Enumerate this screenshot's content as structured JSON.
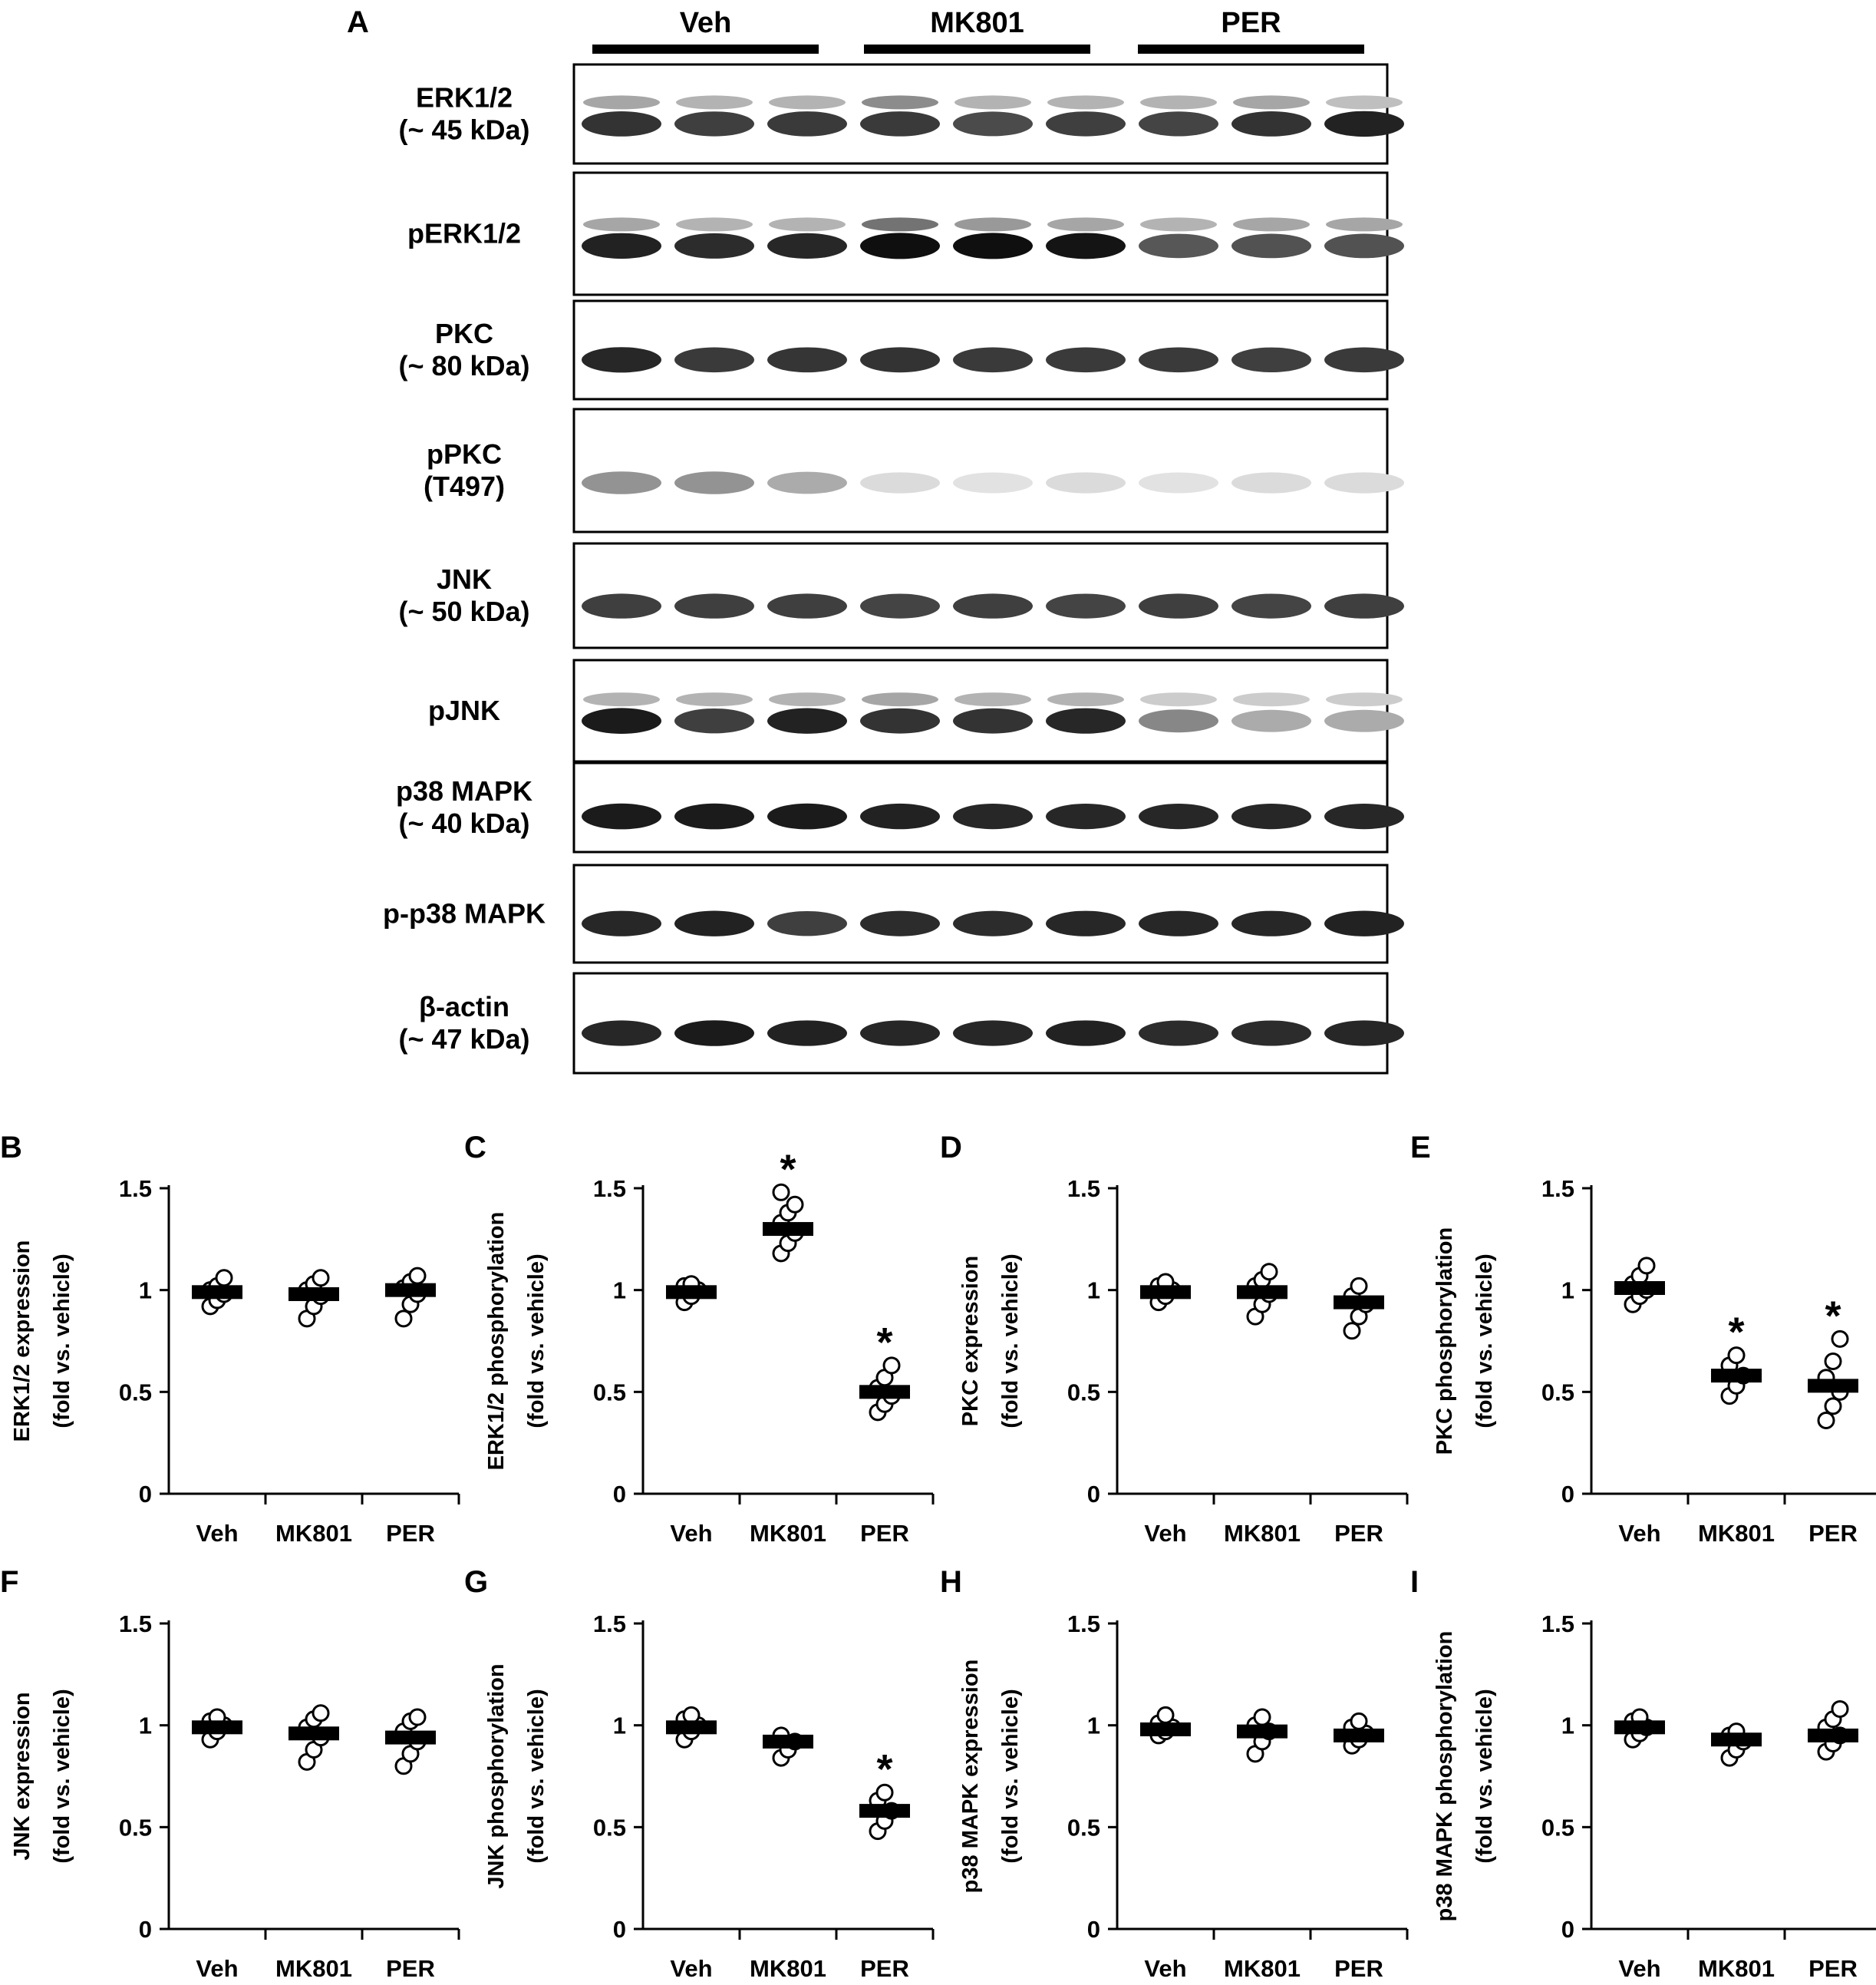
{
  "figure": {
    "panel_a": {
      "letter": "A",
      "groups": [
        "Veh",
        "MK801",
        "PER"
      ],
      "blots": [
        {
          "label_lines": [
            "ERK1/2",
            "(~ 45 kDa)"
          ],
          "bands": [
            0.85,
            0.8,
            0.82,
            0.82,
            0.75,
            0.8,
            0.78,
            0.85,
            0.92
          ],
          "upper_bands": [
            0.35,
            0.3,
            0.3,
            0.45,
            0.3,
            0.3,
            0.3,
            0.35,
            0.25
          ]
        },
        {
          "label_lines": [
            "pERK1/2"
          ],
          "bands": [
            0.92,
            0.88,
            0.9,
            1.0,
            1.0,
            0.98,
            0.7,
            0.72,
            0.72
          ],
          "upper_bands": [
            0.35,
            0.3,
            0.3,
            0.55,
            0.4,
            0.35,
            0.3,
            0.35,
            0.35
          ]
        },
        {
          "label_lines": [
            "PKC",
            "(~ 80 kDa)"
          ],
          "bands": [
            0.9,
            0.82,
            0.84,
            0.85,
            0.82,
            0.82,
            0.82,
            0.8,
            0.82
          ],
          "upper_bands": []
        },
        {
          "label_lines": [
            "pPKC",
            "(T497)"
          ],
          "bands": [
            0.45,
            0.45,
            0.35,
            0.15,
            0.12,
            0.15,
            0.12,
            0.15,
            0.15
          ],
          "upper_bands": []
        },
        {
          "label_lines": [
            "JNK",
            "(~ 50 kDa)"
          ],
          "bands": [
            0.8,
            0.8,
            0.8,
            0.78,
            0.8,
            0.78,
            0.8,
            0.78,
            0.8
          ],
          "upper_bands": []
        },
        {
          "label_lines": [
            "pJNK"
          ],
          "bands": [
            0.95,
            0.8,
            0.92,
            0.85,
            0.85,
            0.9,
            0.5,
            0.35,
            0.35
          ],
          "upper_bands": [
            0.3,
            0.3,
            0.3,
            0.35,
            0.3,
            0.3,
            0.2,
            0.2,
            0.2
          ]
        },
        {
          "label_lines": [
            "p38 MAPK",
            "(~ 40 kDa)"
          ],
          "bands": [
            0.95,
            0.95,
            0.95,
            0.92,
            0.9,
            0.9,
            0.9,
            0.9,
            0.9
          ],
          "upper_bands": []
        },
        {
          "label_lines": [
            "p-p38 MAPK"
          ],
          "bands": [
            0.9,
            0.92,
            0.8,
            0.88,
            0.88,
            0.9,
            0.9,
            0.9,
            0.92
          ],
          "upper_bands": []
        },
        {
          "label_lines": [
            "β-actin",
            "(~ 47 kDa)"
          ],
          "bands": [
            0.9,
            0.95,
            0.92,
            0.9,
            0.9,
            0.92,
            0.88,
            0.88,
            0.9
          ],
          "upper_bands": []
        }
      ]
    }
  },
  "chart_data": [
    {
      "type": "scatter",
      "panel": "B",
      "ylabel_lines": [
        "ERK1/2 expression",
        "(fold vs. vehicle)"
      ],
      "categories": [
        "Veh",
        "MK801",
        "PER"
      ],
      "ylim": [
        0,
        1.5
      ],
      "yticks": [
        "0",
        "0.5",
        "1",
        "1.5"
      ],
      "means": [
        0.99,
        0.98,
        1.0
      ],
      "points": [
        [
          0.92,
          0.95,
          0.98,
          1.0,
          1.02,
          1.06
        ],
        [
          0.86,
          0.92,
          0.97,
          1.0,
          1.03,
          1.06
        ],
        [
          0.86,
          0.93,
          0.98,
          1.01,
          1.04,
          1.07
        ]
      ],
      "significant": [
        "",
        "",
        ""
      ]
    },
    {
      "type": "scatter",
      "panel": "C",
      "ylabel_lines": [
        "ERK1/2 phosphorylation",
        "(fold vs. vehicle)"
      ],
      "categories": [
        "Veh",
        "MK801",
        "PER"
      ],
      "ylim": [
        0,
        1.5
      ],
      "yticks": [
        "0",
        "0.5",
        "1",
        "1.5"
      ],
      "means": [
        0.99,
        1.3,
        0.5
      ],
      "points": [
        [
          0.94,
          0.97,
          1.0,
          1.02,
          1.03
        ],
        [
          1.18,
          1.23,
          1.28,
          1.33,
          1.38,
          1.42,
          1.48
        ],
        [
          0.4,
          0.44,
          0.48,
          0.52,
          0.57,
          0.63
        ]
      ],
      "significant": [
        "",
        "*",
        "*"
      ]
    },
    {
      "type": "scatter",
      "panel": "D",
      "ylabel_lines": [
        "PKC expression",
        "(fold vs. vehicle)"
      ],
      "categories": [
        "Veh",
        "MK801",
        "PER"
      ],
      "ylim": [
        0,
        1.5
      ],
      "yticks": [
        "0",
        "0.5",
        "1",
        "1.5"
      ],
      "means": [
        0.99,
        0.99,
        0.94
      ],
      "points": [
        [
          0.94,
          0.97,
          1.0,
          1.02,
          1.04
        ],
        [
          0.87,
          0.93,
          0.98,
          1.02,
          1.05,
          1.09
        ],
        [
          0.8,
          0.87,
          0.93,
          0.97,
          1.02
        ]
      ],
      "significant": [
        "",
        "",
        ""
      ]
    },
    {
      "type": "scatter",
      "panel": "E",
      "ylabel_lines": [
        "PKC phosphorylation",
        "(fold vs. vehicle)"
      ],
      "categories": [
        "Veh",
        "MK801",
        "PER"
      ],
      "ylim": [
        0,
        1.5
      ],
      "yticks": [
        "0",
        "0.5",
        "1",
        "1.5"
      ],
      "means": [
        1.01,
        0.58,
        0.53
      ],
      "points": [
        [
          0.93,
          0.97,
          1.0,
          1.03,
          1.07,
          1.12
        ],
        [
          0.48,
          0.53,
          0.58,
          0.63,
          0.68
        ],
        [
          0.36,
          0.43,
          0.5,
          0.57,
          0.65,
          0.76
        ]
      ],
      "significant": [
        "",
        "*",
        "*"
      ]
    },
    {
      "type": "scatter",
      "panel": "F",
      "ylabel_lines": [
        "JNK expression",
        "(fold vs. vehicle)"
      ],
      "categories": [
        "Veh",
        "MK801",
        "PER"
      ],
      "ylim": [
        0,
        1.5
      ],
      "yticks": [
        "0",
        "0.5",
        "1",
        "1.5"
      ],
      "means": [
        0.99,
        0.96,
        0.94
      ],
      "points": [
        [
          0.93,
          0.97,
          1.0,
          1.02,
          1.04
        ],
        [
          0.82,
          0.88,
          0.94,
          0.99,
          1.03,
          1.06
        ],
        [
          0.8,
          0.86,
          0.92,
          0.97,
          1.02,
          1.04
        ]
      ],
      "significant": [
        "",
        "",
        ""
      ]
    },
    {
      "type": "scatter",
      "panel": "G",
      "ylabel_lines": [
        "JNK phosphorylation",
        "(fold vs. vehicle)"
      ],
      "categories": [
        "Veh",
        "MK801",
        "PER"
      ],
      "ylim": [
        0,
        1.5
      ],
      "yticks": [
        "0",
        "0.5",
        "1",
        "1.5"
      ],
      "means": [
        0.99,
        0.92,
        0.58
      ],
      "points": [
        [
          0.93,
          0.97,
          1.0,
          1.03,
          1.05
        ],
        [
          0.84,
          0.88,
          0.92,
          0.95
        ],
        [
          0.48,
          0.53,
          0.58,
          0.63,
          0.67
        ]
      ],
      "significant": [
        "",
        "",
        "*"
      ]
    },
    {
      "type": "scatter",
      "panel": "H",
      "ylabel_lines": [
        "p38 MAPK expression",
        "(fold vs. vehicle)"
      ],
      "categories": [
        "Veh",
        "MK801",
        "PER"
      ],
      "ylim": [
        0,
        1.5
      ],
      "yticks": [
        "0",
        "0.5",
        "1",
        "1.5"
      ],
      "means": [
        0.98,
        0.97,
        0.95
      ],
      "points": [
        [
          0.95,
          0.97,
          0.99,
          1.01,
          1.05
        ],
        [
          0.86,
          0.92,
          0.97,
          1.0,
          1.04
        ],
        [
          0.9,
          0.93,
          0.96,
          0.99,
          1.02
        ]
      ],
      "significant": [
        "",
        "",
        ""
      ]
    },
    {
      "type": "scatter",
      "panel": "I",
      "ylabel_lines": [
        "p38 MAPK phosphorylation",
        "(fold vs. vehicle)"
      ],
      "categories": [
        "Veh",
        "MK801",
        "PER"
      ],
      "ylim": [
        0,
        1.5
      ],
      "yticks": [
        "0",
        "0.5",
        "1",
        "1.5"
      ],
      "means": [
        0.99,
        0.93,
        0.95
      ],
      "points": [
        [
          0.93,
          0.96,
          0.99,
          1.02,
          1.04
        ],
        [
          0.84,
          0.88,
          0.92,
          0.95,
          0.97
        ],
        [
          0.87,
          0.91,
          0.95,
          0.99,
          1.03,
          1.08
        ]
      ],
      "significant": [
        "",
        "",
        ""
      ]
    }
  ]
}
